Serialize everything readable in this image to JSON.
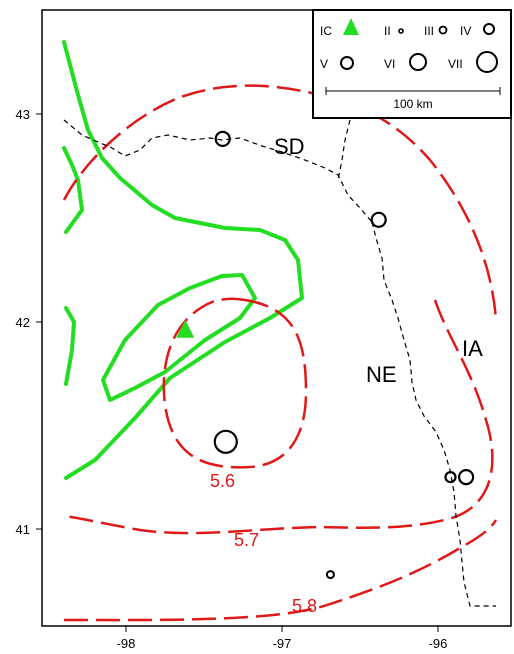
{
  "map": {
    "x_ticks": [
      "-98",
      "-97",
      "-96"
    ],
    "y_ticks": [
      "43",
      "42",
      "41"
    ],
    "state_labels": {
      "sd": "SD",
      "ne": "NE",
      "ia": "IA"
    },
    "contour_labels": [
      "5.6",
      "5.7",
      "5.8"
    ],
    "colors": {
      "contour": "#e01818",
      "intensity_boundary": "#22dd22",
      "epicenter": "#22dd22",
      "state_border": "#000000",
      "frame": "#000000"
    },
    "epicenter": {
      "marker": "filled-triangle",
      "lon": -97.62,
      "lat": 41.96
    }
  },
  "legend": {
    "ic": "IC",
    "ii": "II",
    "iii": "III",
    "iv": "IV",
    "v": "V",
    "vi": "VI",
    "vii": "VII",
    "scale": "100 km"
  },
  "chart_data": {
    "type": "map",
    "xlim": [
      -98.5,
      -95.5
    ],
    "ylim": [
      40.5,
      43.5
    ],
    "x_ticks": [
      -98,
      -97,
      -96
    ],
    "y_ticks": [
      41,
      42,
      43
    ],
    "contours": [
      {
        "label": "5.6",
        "color": "#e01818"
      },
      {
        "label": "5.7",
        "color": "#e01818"
      },
      {
        "label": "5.8",
        "color": "#e01818"
      }
    ],
    "intensity_observations": [
      {
        "lon": -97.38,
        "lat": 42.88,
        "intensity": "V"
      },
      {
        "lon": -96.38,
        "lat": 42.49,
        "intensity": "V"
      },
      {
        "lon": -97.36,
        "lat": 41.42,
        "intensity": "VI"
      },
      {
        "lon": -95.92,
        "lat": 41.25,
        "intensity": "IV"
      },
      {
        "lon": -95.82,
        "lat": 41.25,
        "intensity": "V"
      },
      {
        "lon": -96.69,
        "lat": 40.78,
        "intensity": "III"
      }
    ],
    "epicenter": {
      "lon": -97.62,
      "lat": 41.96,
      "intensity": "IC"
    }
  }
}
